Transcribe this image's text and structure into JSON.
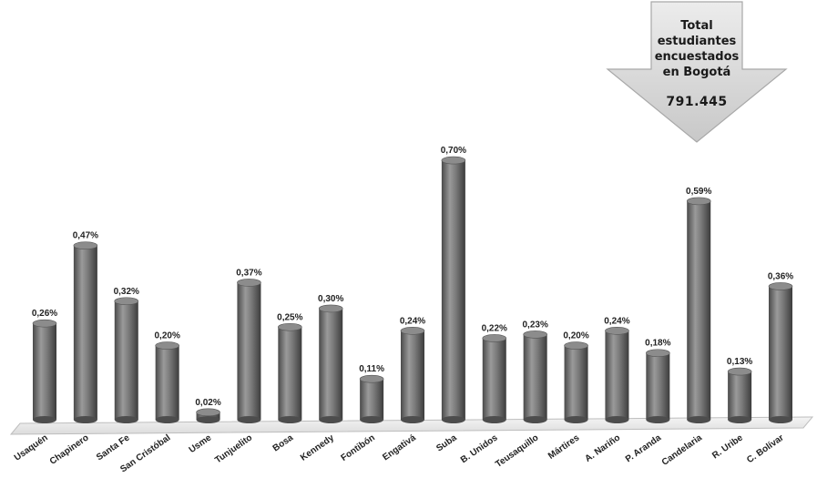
{
  "chart_data": {
    "type": "bar",
    "categories": [
      "Usaquén",
      "Chapinero",
      "Santa Fe",
      "San Cristóbal",
      "Usme",
      "Tunjuelito",
      "Bosa",
      "Kennedy",
      "Fontibón",
      "Engativá",
      "Suba",
      "B. Unidos",
      "Teusaquillo",
      "Mártires",
      "A. Nariño",
      "P. Aranda",
      "Candelaria",
      "R. Uribe",
      "C. Bolívar"
    ],
    "values": [
      0.26,
      0.47,
      0.32,
      0.2,
      0.02,
      0.37,
      0.25,
      0.3,
      0.11,
      0.24,
      0.7,
      0.22,
      0.23,
      0.2,
      0.24,
      0.18,
      0.59,
      0.13,
      0.36
    ],
    "data_labels": [
      "0,26%",
      "0,47%",
      "0,32%",
      "0,20%",
      "0,02%",
      "0,37%",
      "0,25%",
      "0,30%",
      "0,11%",
      "0,24%",
      "0,70%",
      "0,22%",
      "0,23%",
      "0,20%",
      "0,24%",
      "0,18%",
      "0,59%",
      "0,13%",
      "0,36%"
    ],
    "ylim": [
      0,
      0.75
    ],
    "grid": false,
    "bar_color": "#7a7a7a"
  },
  "callout": {
    "title": "Total estudiantes encuestados en Bogotá",
    "total": "791.445",
    "fill": "#d6d6d6"
  }
}
